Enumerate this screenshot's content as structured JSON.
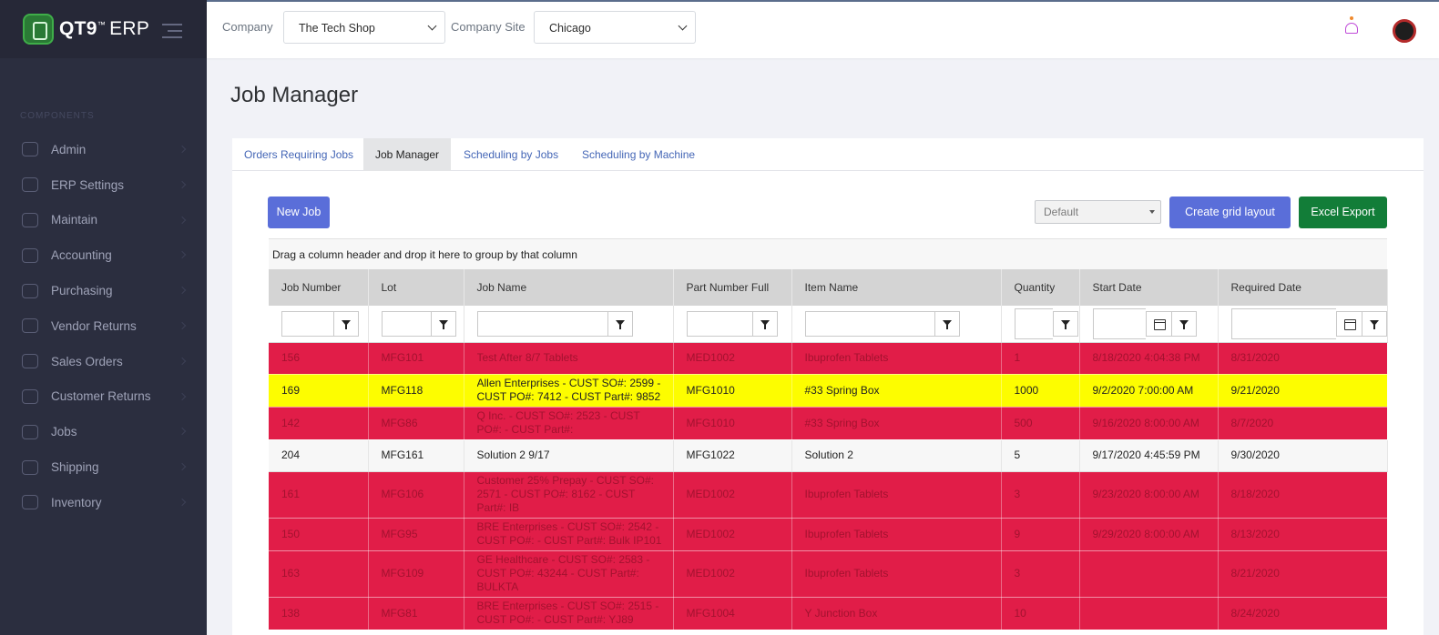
{
  "brand": {
    "name": "QT9",
    "tm": "™",
    "suffix": "ERP"
  },
  "sidebar": {
    "section_label": "COMPONENTS",
    "items": [
      {
        "label": "Admin",
        "icon": "user-icon"
      },
      {
        "label": "ERP Settings",
        "icon": "settings-icon"
      },
      {
        "label": "Maintain",
        "icon": "wrench-icon"
      },
      {
        "label": "Accounting",
        "icon": "coins-icon"
      },
      {
        "label": "Purchasing",
        "icon": "chart-icon"
      },
      {
        "label": "Vendor Returns",
        "icon": "return-icon"
      },
      {
        "label": "Sales Orders",
        "icon": "gear-icon"
      },
      {
        "label": "Customer Returns",
        "icon": "list-icon"
      },
      {
        "label": "Jobs",
        "icon": "briefcase-icon"
      },
      {
        "label": "Shipping",
        "icon": "truck-icon"
      },
      {
        "label": "Inventory",
        "icon": "box-icon"
      }
    ]
  },
  "topbar": {
    "company_label": "Company",
    "company_value": "The Tech Shop",
    "site_label": "Company Site",
    "site_value": "Chicago"
  },
  "page": {
    "title": "Job Manager"
  },
  "tabs": [
    {
      "label": "Orders Requiring Jobs",
      "active": false
    },
    {
      "label": "Job Manager",
      "active": true
    },
    {
      "label": "Scheduling by Jobs",
      "active": false
    },
    {
      "label": "Scheduling by Machine",
      "active": false
    }
  ],
  "toolbar": {
    "new_job": "New Job",
    "layout_select": "Default",
    "create_grid_layout": "Create grid layout",
    "excel_export": "Excel Export"
  },
  "grid": {
    "group_hint": "Drag a column header and drop it here to group by that column",
    "columns": [
      "Job Number",
      "Lot",
      "Job Name",
      "Part Number Full",
      "Item Name",
      "Quantity",
      "Start Date",
      "Required Date"
    ],
    "rows": [
      {
        "status": "red",
        "cells": [
          "156",
          "MFG101",
          "Test After 8/7 Tablets",
          "MED1002",
          "Ibuprofen Tablets",
          "1",
          "8/18/2020 4:04:38 PM",
          "8/31/2020"
        ]
      },
      {
        "status": "yellow",
        "cells": [
          "169",
          "MFG118",
          "Allen Enterprises - CUST SO#: 2599 - CUST PO#: 7412 - CUST Part#: 9852",
          "MFG1010",
          "#33 Spring Box",
          "1000",
          "9/2/2020 7:00:00 AM",
          "9/21/2020"
        ]
      },
      {
        "status": "red",
        "cells": [
          "142",
          "MFG86",
          "Q Inc. - CUST SO#: 2523 - CUST PO#: - CUST Part#:",
          "MFG1010",
          "#33 Spring Box",
          "500",
          "9/16/2020 8:00:00 AM",
          "8/7/2020"
        ]
      },
      {
        "status": "white",
        "cells": [
          "204",
          "MFG161",
          "Solution 2 9/17",
          "MFG1022",
          "Solution 2",
          "5",
          "9/17/2020 4:45:59 PM",
          "9/30/2020"
        ]
      },
      {
        "status": "red",
        "cells": [
          "161",
          "MFG106",
          "Customer 25% Prepay - CUST SO#: 2571 - CUST PO#: 8162 - CUST Part#: IB",
          "MED1002",
          "Ibuprofen Tablets",
          "3",
          "9/23/2020 8:00:00 AM",
          "8/18/2020"
        ]
      },
      {
        "status": "red",
        "cells": [
          "150",
          "MFG95",
          "BRE Enterprises - CUST SO#: 2542 - CUST PO#: - CUST Part#: Bulk IP101",
          "MED1002",
          "Ibuprofen Tablets",
          "9",
          "9/29/2020 8:00:00 AM",
          "8/13/2020"
        ]
      },
      {
        "status": "red",
        "cells": [
          "163",
          "MFG109",
          "GE Healthcare - CUST SO#: 2583 - CUST PO#: 43244 - CUST Part#: BULKTA",
          "MED1002",
          "Ibuprofen Tablets",
          "3",
          "",
          "8/21/2020"
        ]
      },
      {
        "status": "red",
        "cells": [
          "138",
          "MFG81",
          "BRE Enterprises - CUST SO#: 2515 - CUST PO#: - CUST Part#: YJ89",
          "MFG1004",
          "Y Junction Box",
          "10",
          "",
          "8/24/2020"
        ]
      }
    ]
  },
  "colors": {
    "red_row": "#e11d48",
    "yellow_row": "#fdfd00",
    "accent_blue": "#5a6ed9",
    "excel_green": "#127d38",
    "sidebar_bg": "#2b2e3f"
  }
}
